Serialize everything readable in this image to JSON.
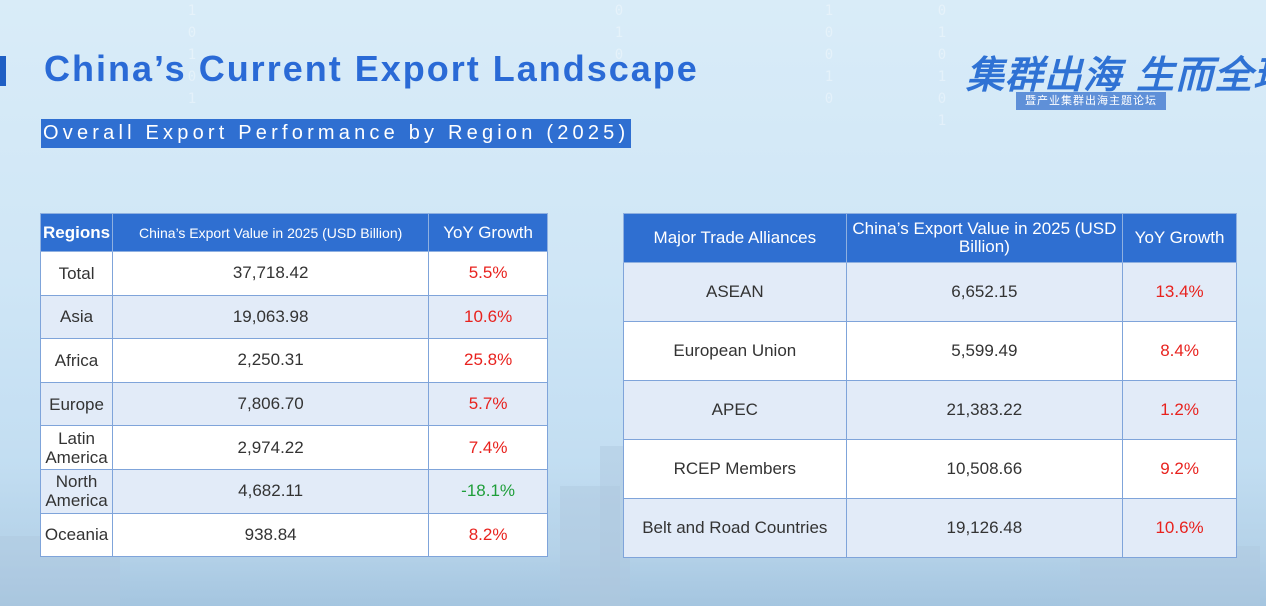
{
  "header": {
    "title": "China’s Current Export Landscape",
    "subtitle": "Overall Export Performance by Region (2025)"
  },
  "logo": {
    "main_text": "集群出海 生而全球",
    "sub_text": "暨产业集群出海主题论坛"
  },
  "region_table": {
    "headers": [
      "Regions",
      "China’s Export Value in 2025 (USD Billion)",
      "YoY Growth"
    ],
    "rows": [
      {
        "region": "Total",
        "value": "37,718.42",
        "growth": "5.5%",
        "trend": "up"
      },
      {
        "region": "Asia",
        "value": "19,063.98",
        "growth": "10.6%",
        "trend": "up"
      },
      {
        "region": "Africa",
        "value": "2,250.31",
        "growth": "25.8%",
        "trend": "up"
      },
      {
        "region": "Europe",
        "value": "7,806.70",
        "growth": "5.7%",
        "trend": "up"
      },
      {
        "region": "Latin America",
        "value": "2,974.22",
        "growth": "7.4%",
        "trend": "up"
      },
      {
        "region": "North America",
        "value": "4,682.11",
        "growth": "-18.1%",
        "trend": "down"
      },
      {
        "region": "Oceania",
        "value": "938.84",
        "growth": "8.2%",
        "trend": "up"
      }
    ]
  },
  "alliance_table": {
    "headers": [
      "Major Trade Alliances",
      "China’s Export Value in 2025 (USD Billion)",
      "YoY Growth"
    ],
    "rows": [
      {
        "alliance": "ASEAN",
        "value": "6,652.15",
        "growth": "13.4%"
      },
      {
        "alliance": "European Union",
        "value": "5,599.49",
        "growth": "8.4%"
      },
      {
        "alliance": "APEC",
        "value": "21,383.22",
        "growth": "1.2%"
      },
      {
        "alliance": "RCEP Members",
        "value": "10,508.66",
        "growth": "9.2%"
      },
      {
        "alliance": "Belt and Road Countries",
        "value": "19,126.48",
        "growth": "10.6%"
      }
    ]
  },
  "colors": {
    "accent": "#2f6fd1",
    "title": "#2a6ad6",
    "positive": "#e8221e",
    "negative": "#1f9e3a"
  }
}
